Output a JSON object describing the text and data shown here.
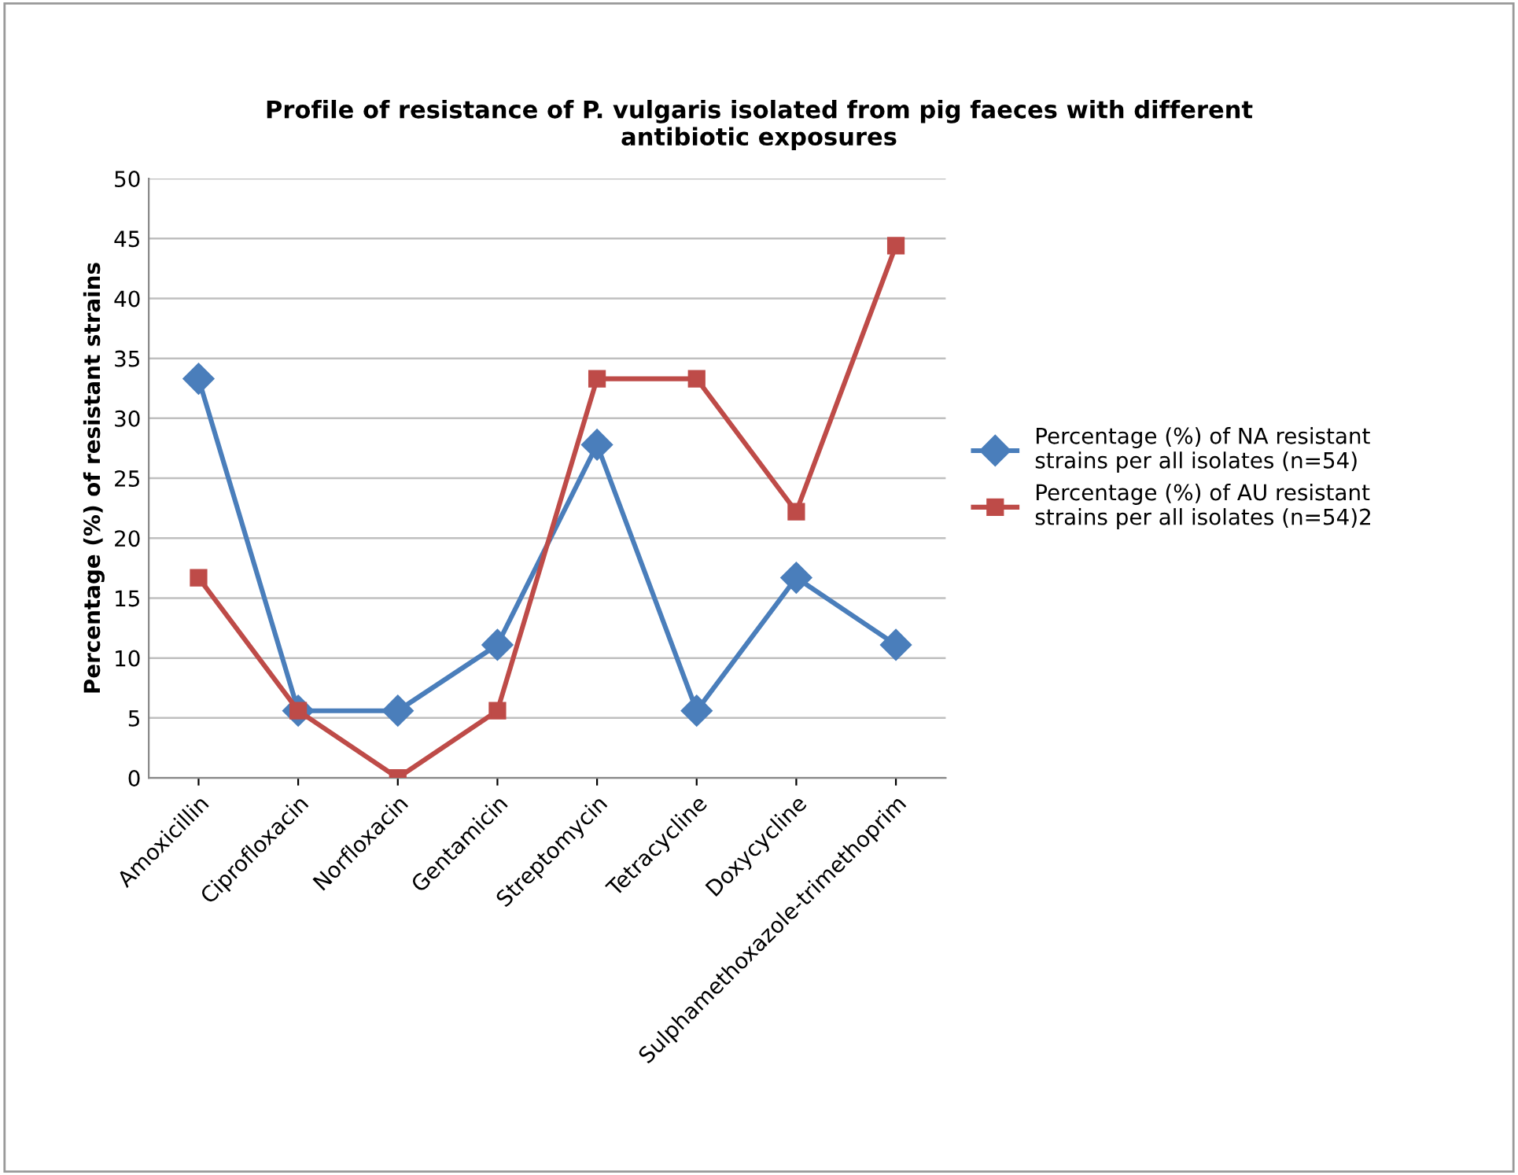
{
  "chart_data": {
    "type": "line",
    "title": "Profile of resistance of P. vulgaris isolated from pig faeces with different\nantibiotic exposures",
    "ylabel": "Percentage (%) of resistant strains",
    "categories": [
      "Amoxicillin",
      "Ciprofloxacin",
      "Norfloxacin",
      "Gentamicin",
      "Streptomycin",
      "Tetracycline",
      "Doxycycline",
      "Sulphamethoxazole-trimethoprim"
    ],
    "series": [
      {
        "name": "Percentage (%) of NA resistant\nstrains per all isolates (n=54)",
        "color": "#4a7ebb",
        "marker": "diamond",
        "values": [
          33.3,
          5.6,
          5.6,
          11.1,
          27.8,
          5.6,
          16.7,
          11.1
        ]
      },
      {
        "name": "Percentage (%) of AU resistant\nstrains per all isolates (n=54)2",
        "color": "#be4b48",
        "marker": "square",
        "values": [
          16.7,
          5.6,
          0,
          5.6,
          33.3,
          33.3,
          22.2,
          44.4
        ]
      }
    ],
    "ylim": [
      0,
      50
    ],
    "yticks": [
      0,
      5,
      10,
      15,
      20,
      25,
      30,
      35,
      40,
      45,
      50
    ],
    "grid": "y",
    "legend": "right",
    "line_style": "solid"
  }
}
